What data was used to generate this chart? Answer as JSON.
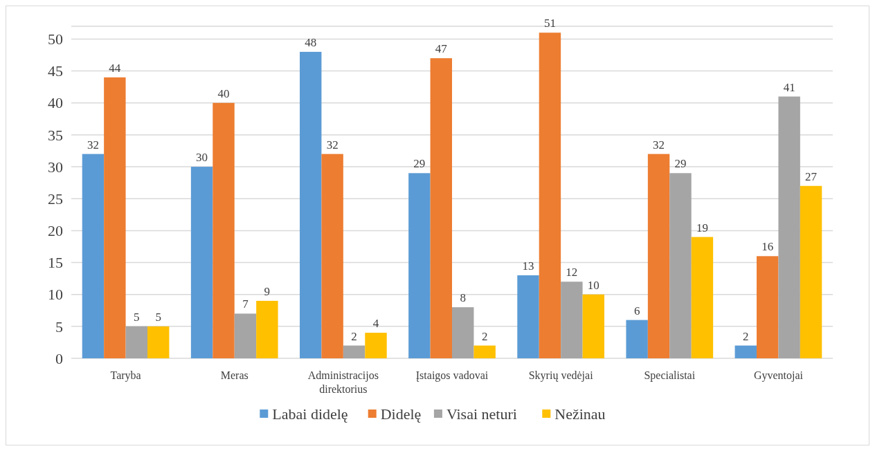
{
  "chart_data": {
    "type": "bar",
    "categories": [
      "Taryba",
      "Meras",
      "Administracijos direktorius",
      "Įstaigos vadovai",
      "Skyrių vedėjai",
      "Specialistai",
      "Gyventojai"
    ],
    "series": [
      {
        "name": "Labai didelę",
        "color": "#5b9bd5",
        "values": [
          32,
          30,
          48,
          29,
          13,
          6,
          2
        ]
      },
      {
        "name": "Didelę",
        "color": "#ed7d31",
        "values": [
          44,
          40,
          32,
          47,
          51,
          32,
          16
        ]
      },
      {
        "name": "Visai neturi",
        "color": "#a5a5a5",
        "values": [
          5,
          7,
          2,
          8,
          12,
          29,
          41
        ]
      },
      {
        "name": "Nežinau",
        "color": "#ffc000",
        "values": [
          5,
          9,
          4,
          2,
          10,
          19,
          27
        ]
      }
    ],
    "ylim": [
      0,
      52
    ],
    "yticks": [
      0,
      5,
      10,
      15,
      20,
      25,
      30,
      35,
      40,
      45,
      50
    ],
    "grid": "y",
    "legend": "bottom",
    "data_labels": true
  }
}
